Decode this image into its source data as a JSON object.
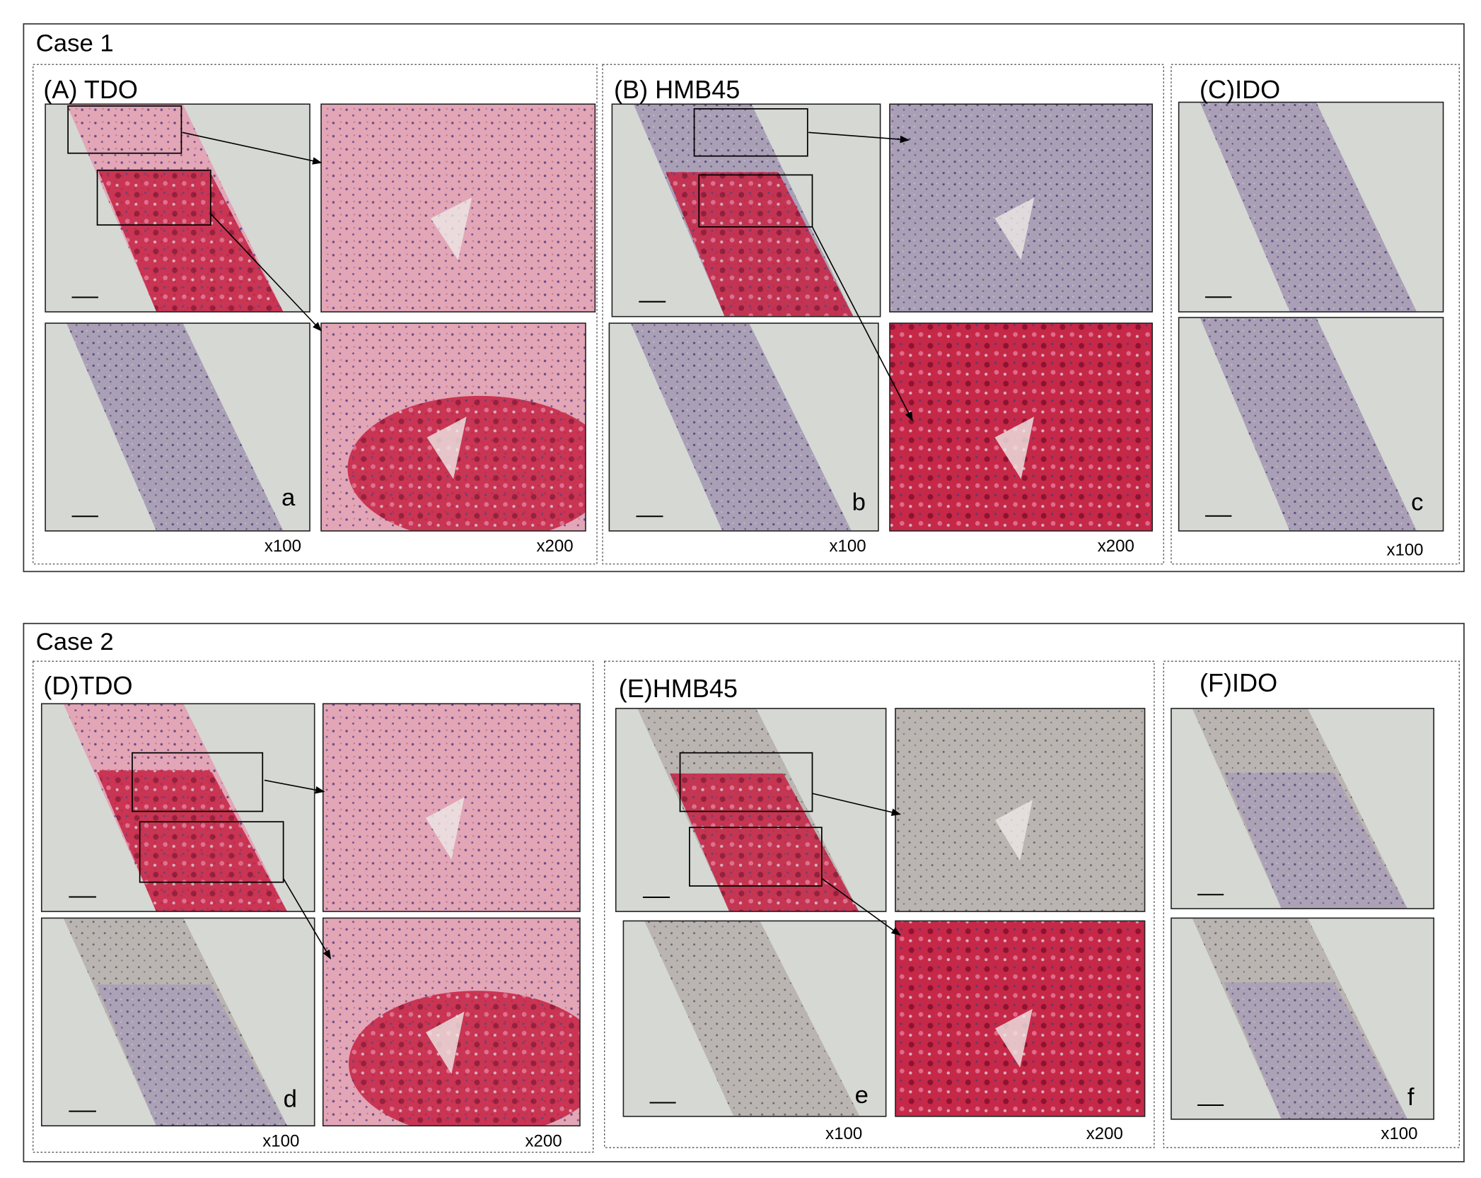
{
  "cases": [
    {
      "title": "Case 1",
      "panels": [
        {
          "title": "(A) TDO",
          "letter": "a",
          "magnifications": [
            "x100",
            "x200"
          ]
        },
        {
          "title": "(B) HMB45",
          "letter": "b",
          "magnifications": [
            "x100",
            "x200"
          ]
        },
        {
          "title": "(C)IDO",
          "letter": "c",
          "magnifications": [
            "x100"
          ]
        }
      ]
    },
    {
      "title": "Case 2",
      "panels": [
        {
          "title": "(D)TDO",
          "letter": "d",
          "magnifications": [
            "x100",
            "x200"
          ]
        },
        {
          "title": "(E)HMB45",
          "letter": "e",
          "magnifications": [
            "x100",
            "x200"
          ]
        },
        {
          "title": "(F)IDO",
          "letter": "f",
          "magnifications": [
            "x100"
          ]
        }
      ]
    }
  ]
}
